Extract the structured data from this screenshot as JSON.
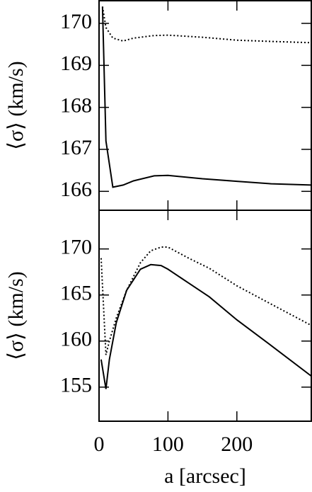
{
  "chart_data": [
    {
      "type": "line",
      "ylabel": "⟨σ⟩ (km/s)",
      "x": [
        5,
        10,
        20,
        35,
        50,
        80,
        100,
        150,
        200,
        250,
        308
      ],
      "series": [
        {
          "color": "#000000",
          "dash": "solid",
          "values": [
            170.4,
            167.2,
            166.1,
            166.15,
            166.25,
            166.37,
            166.38,
            166.3,
            166.24,
            166.18,
            166.15
          ]
        },
        {
          "color": "#000000",
          "dash": "dotted",
          "values": [
            170.4,
            169.9,
            169.65,
            169.58,
            169.65,
            169.71,
            169.72,
            169.67,
            169.6,
            169.57,
            169.54
          ]
        }
      ],
      "xlim": [
        0,
        308
      ],
      "xticks": [
        0,
        100,
        200
      ],
      "ylim": [
        165.55,
        170.54
      ],
      "yticks": [
        166,
        167,
        168,
        169,
        170
      ]
    },
    {
      "type": "line",
      "ylabel": "⟨σ⟩ (km/s)",
      "xlabel": "a [arcsec]",
      "x": [
        3,
        10,
        15,
        25,
        40,
        60,
        75,
        90,
        100,
        130,
        160,
        200,
        250,
        308
      ],
      "series": [
        {
          "color": "#000000",
          "dash": "solid",
          "values": [
            158,
            154.8,
            158,
            162,
            165.5,
            167.8,
            168.3,
            168.2,
            167.8,
            166.3,
            164.8,
            162.3,
            159.5,
            156.2
          ]
        },
        {
          "color": "#000000",
          "dash": "dotted",
          "values": [
            169,
            158.5,
            160,
            162.5,
            165.5,
            168.5,
            169.8,
            170.2,
            170.2,
            169,
            167.9,
            166,
            164,
            161.7
          ]
        }
      ],
      "xlim": [
        0,
        308
      ],
      "xticks": [
        0,
        100,
        200
      ],
      "ylim": [
        151.3,
        174.2
      ],
      "yticks": [
        155,
        160,
        165,
        170
      ]
    }
  ]
}
